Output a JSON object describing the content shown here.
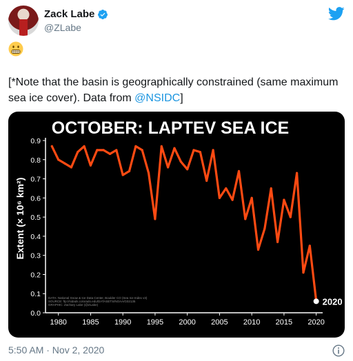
{
  "user": {
    "name": "Zack Labe",
    "handle": "@ZLabe"
  },
  "emoji": "grimacing-face",
  "tweet": {
    "text_before": "[*Note that the basin is geographically constrained (same maximum sea ice cover). Data from ",
    "mention": "@NSIDC",
    "text_after": "]"
  },
  "timestamp": "5:50 AM · Nov 2, 2020",
  "colors": {
    "line": "#ff4a12",
    "chart_bg": "#000000",
    "mention": "#1b95e0",
    "twitter_blue": "#1da1f2"
  },
  "chart_data": {
    "type": "line",
    "title": "OCTOBER: LAPTEV SEA ICE",
    "ylabel": "Extent (× 10⁶ km²)",
    "xlabel": "",
    "xlim": [
      1978,
      2021
    ],
    "ylim": [
      0.0,
      0.9
    ],
    "x_ticks": [
      1980,
      1985,
      1990,
      1995,
      2000,
      2005,
      2010,
      2015,
      2020
    ],
    "y_ticks": [
      "0.0",
      "0.1",
      "0.2",
      "0.3",
      "0.4",
      "0.5",
      "0.6",
      "0.7",
      "0.8",
      "0.9"
    ],
    "grid": false,
    "x": [
      1979,
      1980,
      1981,
      1982,
      1983,
      1984,
      1985,
      1986,
      1987,
      1988,
      1989,
      1990,
      1991,
      1992,
      1993,
      1994,
      1995,
      1996,
      1997,
      1998,
      1999,
      2000,
      2001,
      2002,
      2003,
      2004,
      2005,
      2006,
      2007,
      2008,
      2009,
      2010,
      2011,
      2012,
      2013,
      2014,
      2015,
      2016,
      2017,
      2018,
      2019,
      2020
    ],
    "values": [
      0.87,
      0.8,
      0.78,
      0.76,
      0.84,
      0.87,
      0.77,
      0.85,
      0.85,
      0.83,
      0.85,
      0.72,
      0.74,
      0.87,
      0.85,
      0.73,
      0.49,
      0.87,
      0.76,
      0.86,
      0.79,
      0.75,
      0.85,
      0.84,
      0.69,
      0.85,
      0.6,
      0.65,
      0.59,
      0.74,
      0.49,
      0.6,
      0.33,
      0.44,
      0.65,
      0.37,
      0.59,
      0.5,
      0.73,
      0.21,
      0.35,
      0.06
    ],
    "annotation": {
      "x": 2020,
      "label": "2020"
    },
    "credits": [
      "DATA: National Snow & Ice Data Center, Boulder CO (Sea Ice Index v3)",
      "SOURCE: ftp://sidads.colorado.edu/DATASETS/NOAA/G02135",
      "GRAPHIC: Zachary Labe (@ZLabe)"
    ]
  }
}
